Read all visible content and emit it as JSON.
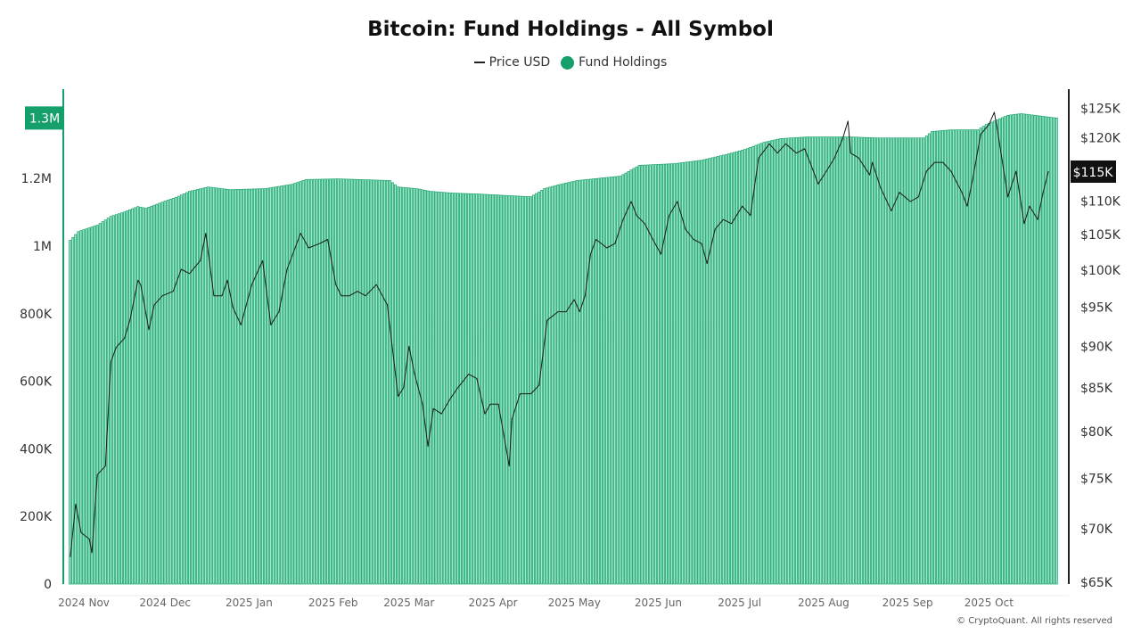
{
  "chart_data": {
    "type": "bar+line",
    "title": "Bitcoin: Fund Holdings - All Symbol",
    "legend": {
      "position": "top",
      "entries": [
        "Price USD",
        "Fund Holdings"
      ]
    },
    "colors": {
      "holdings": "#159f6a",
      "holdings_fill": "#9fe8c9",
      "price": "#1a1a1a",
      "right_badge": "#111111"
    },
    "grid": false,
    "x_axis": {
      "type": "date",
      "range": [
        "2024-10-27",
        "2025-10-26"
      ],
      "tick_labels": [
        {
          "date": "2024-11-01",
          "label": "2024 Nov"
        },
        {
          "date": "2024-12-01",
          "label": "2024 Dec"
        },
        {
          "date": "2025-01-01",
          "label": "2025 Jan"
        },
        {
          "date": "2025-02-01",
          "label": "2025 Feb"
        },
        {
          "date": "2025-03-01",
          "label": "2025 Mar"
        },
        {
          "date": "2025-04-01",
          "label": "2025 Apr"
        },
        {
          "date": "2025-05-01",
          "label": "2025 May"
        },
        {
          "date": "2025-06-01",
          "label": "2025 Jun"
        },
        {
          "date": "2025-07-01",
          "label": "2025 Jul"
        },
        {
          "date": "2025-08-01",
          "label": "2025 Aug"
        },
        {
          "date": "2025-09-01",
          "label": "2025 Sep"
        },
        {
          "date": "2025-10-01",
          "label": "2025 Oct"
        }
      ]
    },
    "left_axis": {
      "series": "Fund Holdings",
      "scale": "linear",
      "range": [
        0,
        1450000
      ],
      "ticks": [
        {
          "value": 0,
          "label": "0"
        },
        {
          "value": 200000,
          "label": "200K"
        },
        {
          "value": 400000,
          "label": "400K"
        },
        {
          "value": 600000,
          "label": "600K"
        },
        {
          "value": 800000,
          "label": "800K"
        },
        {
          "value": 1000000,
          "label": "1M"
        },
        {
          "value": 1200000,
          "label": "1.2M"
        }
      ],
      "current_badge": "1.3M"
    },
    "right_axis": {
      "series": "Price USD",
      "scale": "log",
      "range": [
        65000,
        128000
      ],
      "ticks": [
        {
          "value": 65000,
          "label": "$65K"
        },
        {
          "value": 70000,
          "label": "$70K"
        },
        {
          "value": 75000,
          "label": "$75K"
        },
        {
          "value": 80000,
          "label": "$80K"
        },
        {
          "value": 85000,
          "label": "$85K"
        },
        {
          "value": 90000,
          "label": "$90K"
        },
        {
          "value": 95000,
          "label": "$95K"
        },
        {
          "value": 100000,
          "label": "$100K"
        },
        {
          "value": 105000,
          "label": "$105K"
        },
        {
          "value": 110000,
          "label": "$110K"
        },
        {
          "value": 120000,
          "label": "$120K"
        },
        {
          "value": 125000,
          "label": "$125K"
        }
      ],
      "current_badge": "$115K"
    },
    "series": [
      {
        "name": "Fund Holdings",
        "type": "bar",
        "axis": "left",
        "points": [
          [
            "2024-10-27",
            1017000
          ],
          [
            "2024-10-30",
            1043000
          ],
          [
            "2024-11-06",
            1062000
          ],
          [
            "2024-11-11",
            1088000
          ],
          [
            "2024-11-16",
            1101000
          ],
          [
            "2024-11-21",
            1117000
          ],
          [
            "2024-11-24",
            1112000
          ],
          [
            "2024-12-02",
            1136000
          ],
          [
            "2024-12-05",
            1144000
          ],
          [
            "2024-12-10",
            1162000
          ],
          [
            "2024-12-17",
            1175000
          ],
          [
            "2024-12-25",
            1167000
          ],
          [
            "2025-01-07",
            1170000
          ],
          [
            "2025-01-17",
            1183000
          ],
          [
            "2025-01-22",
            1197000
          ],
          [
            "2025-02-03",
            1199000
          ],
          [
            "2025-02-22",
            1194000
          ],
          [
            "2025-02-25",
            1175000
          ],
          [
            "2025-03-04",
            1170000
          ],
          [
            "2025-03-09",
            1162000
          ],
          [
            "2025-03-17",
            1157000
          ],
          [
            "2025-03-27",
            1154000
          ],
          [
            "2025-04-15",
            1146000
          ],
          [
            "2025-04-20",
            1170000
          ],
          [
            "2025-04-25",
            1181000
          ],
          [
            "2025-05-02",
            1194000
          ],
          [
            "2025-05-18",
            1207000
          ],
          [
            "2025-05-25",
            1239000
          ],
          [
            "2025-06-07",
            1244000
          ],
          [
            "2025-06-17",
            1254000
          ],
          [
            "2025-06-27",
            1273000
          ],
          [
            "2025-07-03",
            1286000
          ],
          [
            "2025-07-10",
            1307000
          ],
          [
            "2025-07-16",
            1318000
          ],
          [
            "2025-07-26",
            1323000
          ],
          [
            "2025-08-11",
            1323000
          ],
          [
            "2025-08-21",
            1320000
          ],
          [
            "2025-09-07",
            1320000
          ],
          [
            "2025-09-10",
            1339000
          ],
          [
            "2025-09-17",
            1344000
          ],
          [
            "2025-09-27",
            1344000
          ],
          [
            "2025-09-30",
            1360000
          ],
          [
            "2025-10-08",
            1387000
          ],
          [
            "2025-10-13",
            1392000
          ],
          [
            "2025-10-26",
            1379000
          ]
        ]
      },
      {
        "name": "Price USD",
        "type": "line",
        "axis": "right",
        "points": [
          [
            "2024-10-27",
            67300
          ],
          [
            "2024-10-29",
            72400
          ],
          [
            "2024-10-31",
            69600
          ],
          [
            "2024-11-03",
            69000
          ],
          [
            "2024-11-04",
            67700
          ],
          [
            "2024-11-06",
            75400
          ],
          [
            "2024-11-09",
            76300
          ],
          [
            "2024-11-11",
            88100
          ],
          [
            "2024-11-13",
            89900
          ],
          [
            "2024-11-16",
            91000
          ],
          [
            "2024-11-18",
            93300
          ],
          [
            "2024-11-21",
            98600
          ],
          [
            "2024-11-22",
            98000
          ],
          [
            "2024-11-25",
            92100
          ],
          [
            "2024-11-27",
            95300
          ],
          [
            "2024-11-30",
            96500
          ],
          [
            "2024-12-04",
            97100
          ],
          [
            "2024-12-07",
            100100
          ],
          [
            "2024-12-10",
            99500
          ],
          [
            "2024-12-14",
            101300
          ],
          [
            "2024-12-16",
            105200
          ],
          [
            "2024-12-19",
            96500
          ],
          [
            "2024-12-22",
            96500
          ],
          [
            "2024-12-24",
            98600
          ],
          [
            "2024-12-26",
            95000
          ],
          [
            "2024-12-29",
            92700
          ],
          [
            "2025-01-02",
            98000
          ],
          [
            "2025-01-06",
            101300
          ],
          [
            "2025-01-09",
            92700
          ],
          [
            "2025-01-12",
            94400
          ],
          [
            "2025-01-15",
            100100
          ],
          [
            "2025-01-18",
            103100
          ],
          [
            "2025-01-20",
            105200
          ],
          [
            "2025-01-23",
            103100
          ],
          [
            "2025-01-27",
            103700
          ],
          [
            "2025-01-30",
            104300
          ],
          [
            "2025-02-02",
            98000
          ],
          [
            "2025-02-04",
            96500
          ],
          [
            "2025-02-07",
            96500
          ],
          [
            "2025-02-10",
            97100
          ],
          [
            "2025-02-13",
            96500
          ],
          [
            "2025-02-17",
            98000
          ],
          [
            "2025-02-21",
            95300
          ],
          [
            "2025-02-25",
            84000
          ],
          [
            "2025-02-27",
            85000
          ],
          [
            "2025-03-01",
            90000
          ],
          [
            "2025-03-03",
            86700
          ],
          [
            "2025-03-06",
            83100
          ],
          [
            "2025-03-08",
            78400
          ],
          [
            "2025-03-10",
            82600
          ],
          [
            "2025-03-13",
            82000
          ],
          [
            "2025-03-16",
            83600
          ],
          [
            "2025-03-19",
            85000
          ],
          [
            "2025-03-23",
            86600
          ],
          [
            "2025-03-26",
            86100
          ],
          [
            "2025-03-29",
            82000
          ],
          [
            "2025-03-31",
            83100
          ],
          [
            "2025-04-03",
            83100
          ],
          [
            "2025-04-07",
            76300
          ],
          [
            "2025-04-08",
            81400
          ],
          [
            "2025-04-11",
            84300
          ],
          [
            "2025-04-15",
            84300
          ],
          [
            "2025-04-18",
            85300
          ],
          [
            "2025-04-21",
            93300
          ],
          [
            "2025-04-25",
            94400
          ],
          [
            "2025-04-28",
            94400
          ],
          [
            "2025-05-01",
            96000
          ],
          [
            "2025-05-03",
            94400
          ],
          [
            "2025-05-05",
            96500
          ],
          [
            "2025-05-07",
            102200
          ],
          [
            "2025-05-09",
            104300
          ],
          [
            "2025-05-13",
            103100
          ],
          [
            "2025-05-16",
            103700
          ],
          [
            "2025-05-19",
            107200
          ],
          [
            "2025-05-22",
            109900
          ],
          [
            "2025-05-24",
            107800
          ],
          [
            "2025-05-27",
            106600
          ],
          [
            "2025-05-30",
            104300
          ],
          [
            "2025-06-02",
            102200
          ],
          [
            "2025-06-05",
            107800
          ],
          [
            "2025-06-08",
            109900
          ],
          [
            "2025-06-11",
            105800
          ],
          [
            "2025-06-14",
            104300
          ],
          [
            "2025-06-17",
            103700
          ],
          [
            "2025-06-19",
            100900
          ],
          [
            "2025-06-22",
            105800
          ],
          [
            "2025-06-25",
            107200
          ],
          [
            "2025-06-28",
            106600
          ],
          [
            "2025-07-02",
            109200
          ],
          [
            "2025-07-05",
            107800
          ],
          [
            "2025-07-08",
            116700
          ],
          [
            "2025-07-12",
            119000
          ],
          [
            "2025-07-15",
            117500
          ],
          [
            "2025-07-18",
            119000
          ],
          [
            "2025-07-22",
            117500
          ],
          [
            "2025-07-25",
            118200
          ],
          [
            "2025-07-27",
            116000
          ],
          [
            "2025-07-30",
            112600
          ],
          [
            "2025-08-02",
            114600
          ],
          [
            "2025-08-05",
            116700
          ],
          [
            "2025-08-08",
            119800
          ],
          [
            "2025-08-10",
            122800
          ],
          [
            "2025-08-11",
            117500
          ],
          [
            "2025-08-14",
            116700
          ],
          [
            "2025-08-18",
            114000
          ],
          [
            "2025-08-19",
            116000
          ],
          [
            "2025-08-22",
            112000
          ],
          [
            "2025-08-26",
            108500
          ],
          [
            "2025-08-29",
            111300
          ],
          [
            "2025-09-02",
            109900
          ],
          [
            "2025-09-05",
            110600
          ],
          [
            "2025-09-08",
            114600
          ],
          [
            "2025-09-11",
            116000
          ],
          [
            "2025-09-14",
            116000
          ],
          [
            "2025-09-17",
            114600
          ],
          [
            "2025-09-21",
            111300
          ],
          [
            "2025-09-23",
            109200
          ],
          [
            "2025-09-25",
            113300
          ],
          [
            "2025-09-28",
            120600
          ],
          [
            "2025-10-01",
            122200
          ],
          [
            "2025-10-03",
            124300
          ],
          [
            "2025-10-04",
            121700
          ],
          [
            "2025-10-07",
            113300
          ],
          [
            "2025-10-08",
            110600
          ],
          [
            "2025-10-11",
            114600
          ],
          [
            "2025-10-14",
            106600
          ],
          [
            "2025-10-16",
            109200
          ],
          [
            "2025-10-19",
            107200
          ],
          [
            "2025-10-21",
            111300
          ],
          [
            "2025-10-23",
            114600
          ]
        ]
      }
    ],
    "watermark": "CryptoQuant"
  },
  "footer": "© CryptoQuant. All rights reserved"
}
